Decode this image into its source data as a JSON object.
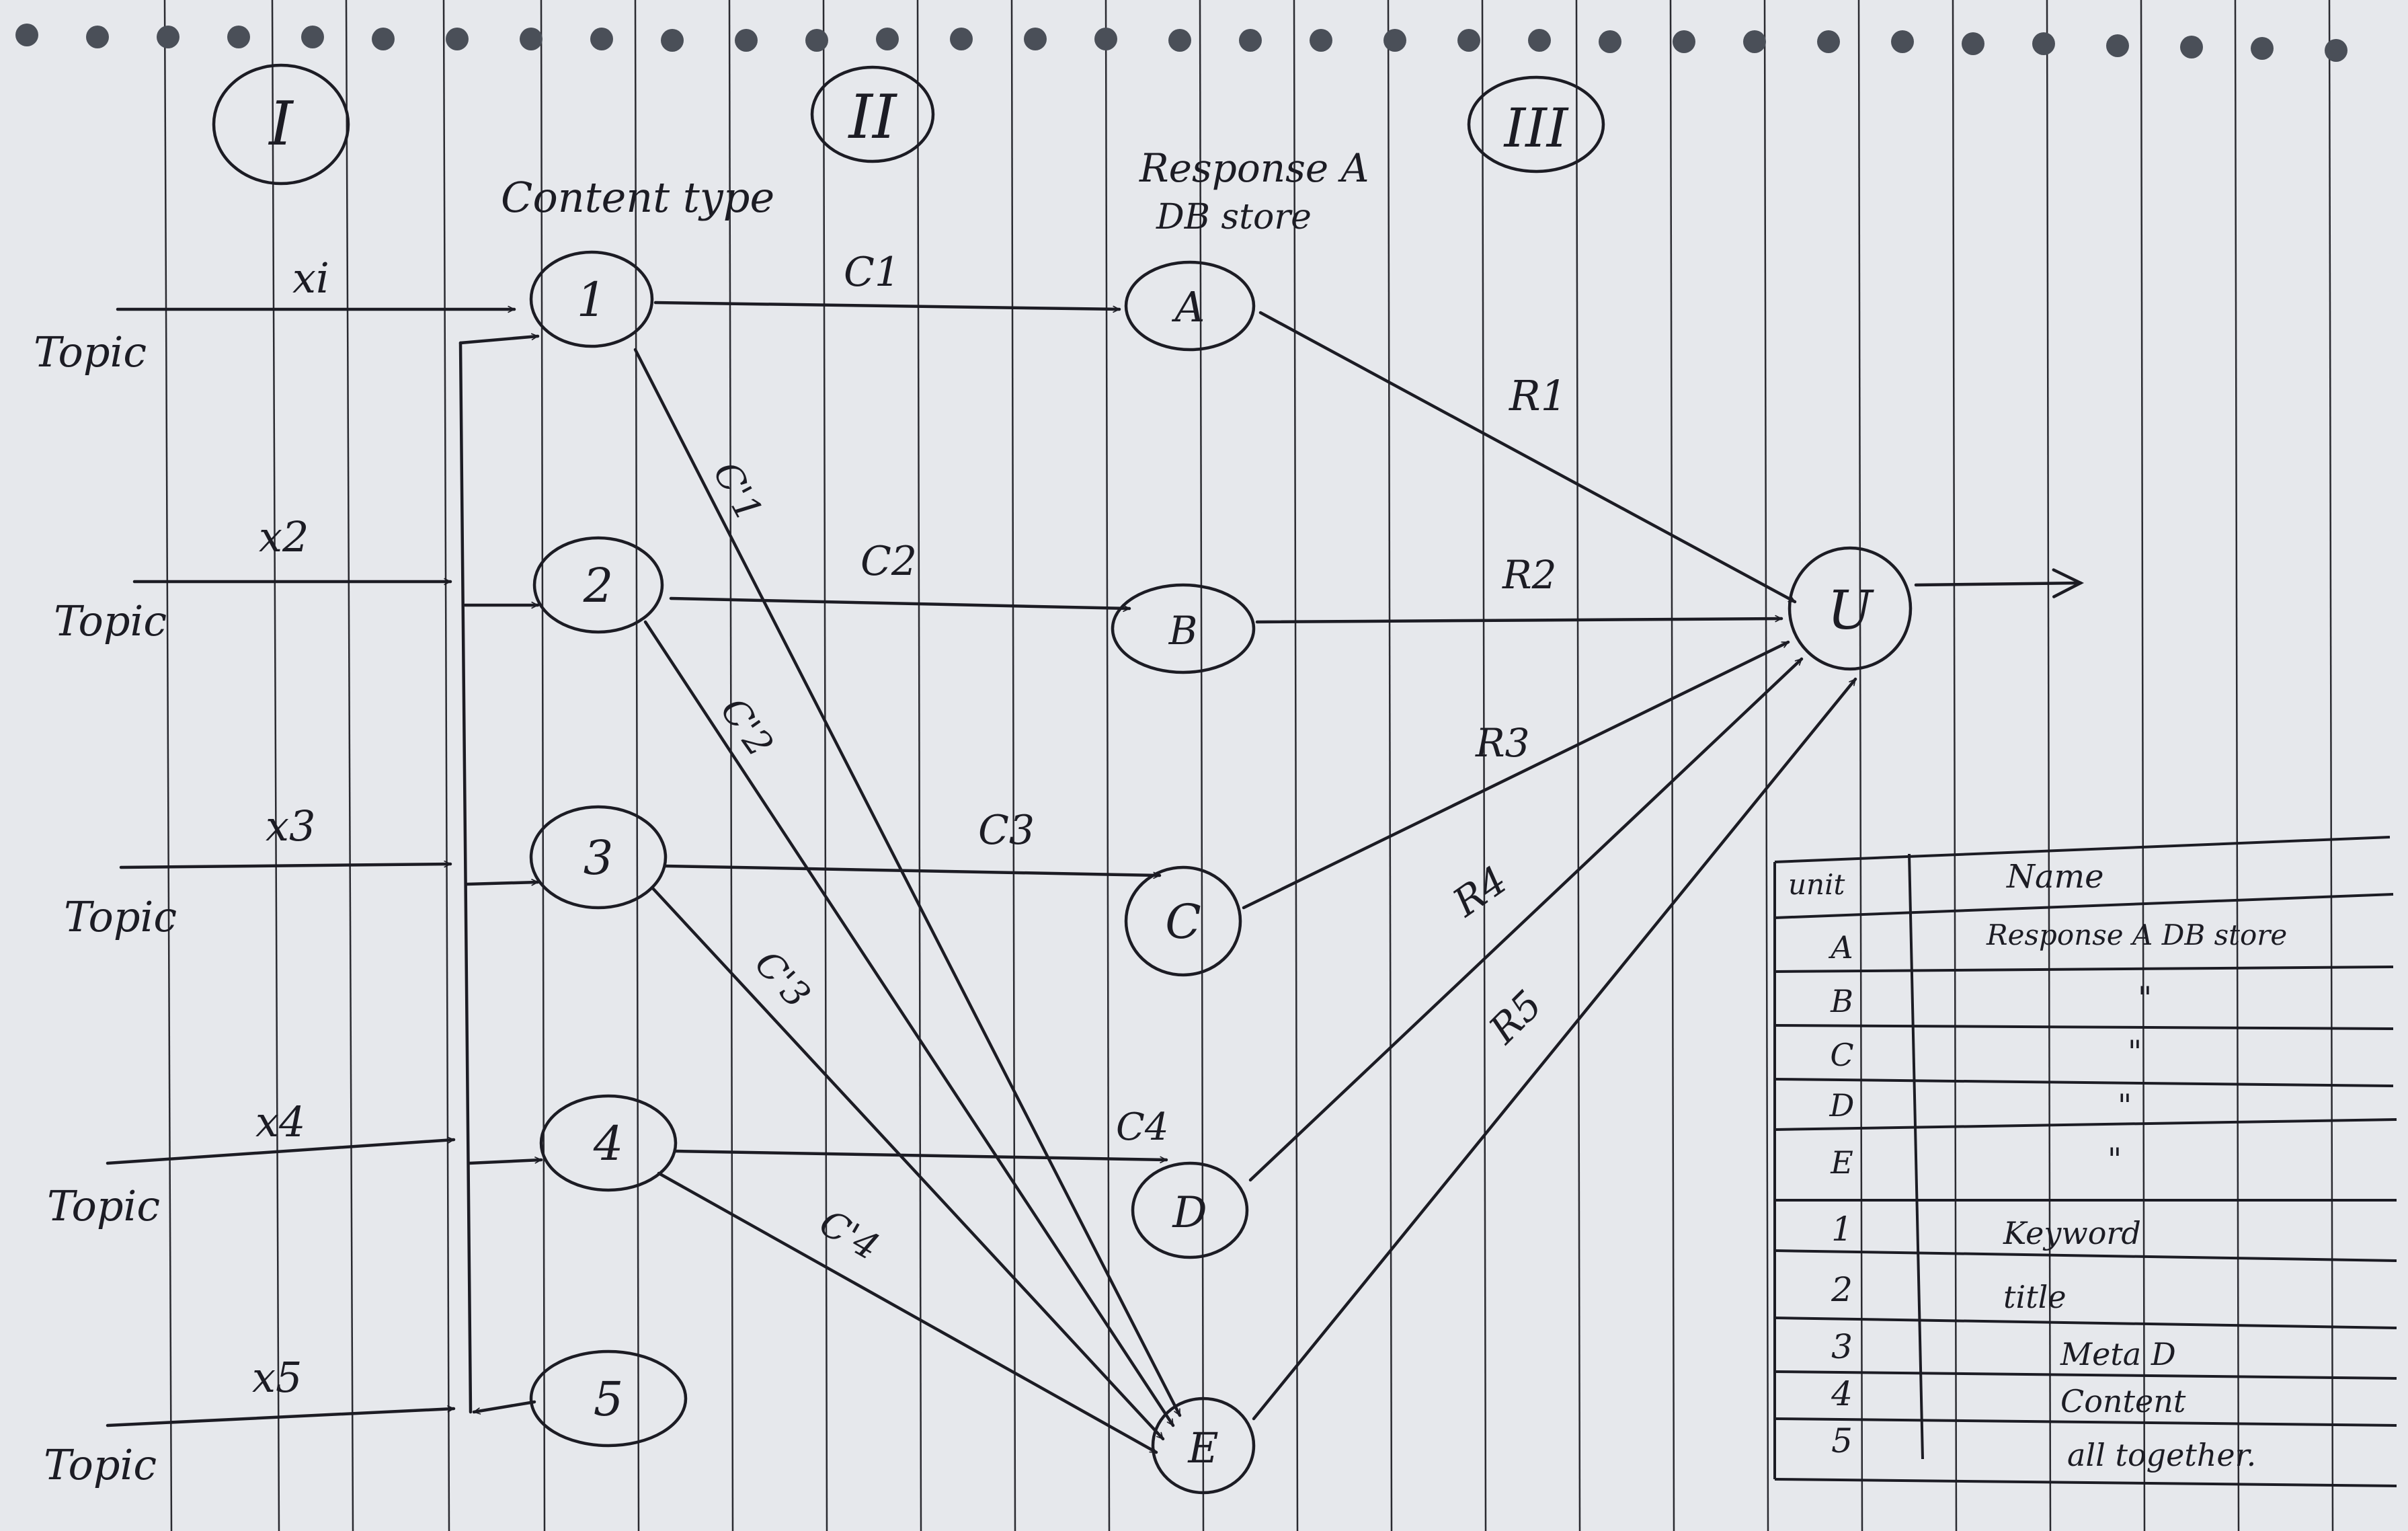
{
  "sections": {
    "one": "I",
    "two": "II",
    "three": "III"
  },
  "headers": {
    "content_type": "Content type",
    "response_line1": "Response A",
    "response_line2": "DB store"
  },
  "inputs": [
    {
      "topic": "Topic",
      "var": "xi"
    },
    {
      "topic": "Topic",
      "var": "x2"
    },
    {
      "topic": "Topic",
      "var": "x3"
    },
    {
      "topic": "Topic",
      "var": "x4"
    },
    {
      "topic": "Topic",
      "var": "x5"
    }
  ],
  "content_nodes": [
    "1",
    "2",
    "3",
    "4",
    "5"
  ],
  "response_nodes": [
    "A",
    "B",
    "C",
    "D",
    "E"
  ],
  "output_node": "U",
  "edge_labels": {
    "direct": [
      "C1",
      "C2",
      "C3",
      "C4"
    ],
    "cross": [
      "C'1",
      "C'2",
      "C'3",
      "C'4"
    ],
    "response": [
      "R1",
      "R2",
      "R3",
      "R4",
      "R5"
    ]
  },
  "table": {
    "headers": [
      "unit",
      "Name"
    ],
    "rows": [
      {
        "unit": "A",
        "name": "Response A DB store"
      },
      {
        "unit": "B",
        "name": "\""
      },
      {
        "unit": "C",
        "name": "\""
      },
      {
        "unit": "D",
        "name": "\""
      },
      {
        "unit": "E",
        "name": "\""
      },
      {
        "unit": "1",
        "name": "Keyword"
      },
      {
        "unit": "2",
        "name": "title"
      },
      {
        "unit": "3",
        "name": "Meta D"
      },
      {
        "unit": "4",
        "name": "Content"
      },
      {
        "unit": "5",
        "name": "all together."
      }
    ]
  }
}
